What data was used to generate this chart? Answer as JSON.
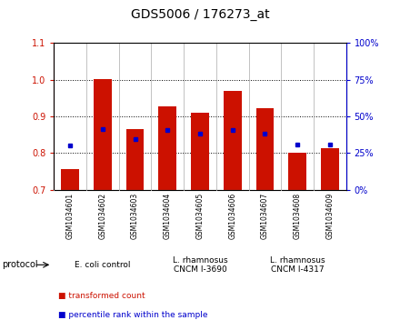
{
  "title": "GDS5006 / 176273_at",
  "samples": [
    "GSM1034601",
    "GSM1034602",
    "GSM1034603",
    "GSM1034604",
    "GSM1034605",
    "GSM1034606",
    "GSM1034607",
    "GSM1034608",
    "GSM1034609"
  ],
  "transformed_count": [
    0.756,
    1.002,
    0.865,
    0.928,
    0.91,
    0.968,
    0.922,
    0.802,
    0.812
  ],
  "percentile_rank": [
    0.82,
    0.864,
    0.838,
    0.862,
    0.853,
    0.863,
    0.852,
    0.822,
    0.823
  ],
  "ylim": [
    0.7,
    1.1
  ],
  "yticks_left": [
    0.7,
    0.8,
    0.9,
    1.0,
    1.1
  ],
  "yticks_right": [
    0,
    25,
    50,
    75,
    100
  ],
  "bar_color": "#cc1100",
  "dot_color": "#0000cc",
  "protocol_groups": [
    {
      "label": "E. coli control",
      "indices": [
        0,
        1,
        2
      ],
      "color": "#ccffcc"
    },
    {
      "label": "L. rhamnosus\nCNCM I-3690",
      "indices": [
        3,
        4,
        5
      ],
      "color": "#99ff99"
    },
    {
      "label": "L. rhamnosus\nCNCM I-4317",
      "indices": [
        6,
        7,
        8
      ],
      "color": "#44cc44"
    }
  ],
  "legend_items": [
    {
      "label": "transformed count",
      "color": "#cc1100"
    },
    {
      "label": "percentile rank within the sample",
      "color": "#0000cc"
    }
  ],
  "title_fontsize": 10,
  "tick_fontsize": 7,
  "sample_fontsize": 5.5,
  "proto_fontsize": 6.5,
  "legend_fontsize": 6.5
}
